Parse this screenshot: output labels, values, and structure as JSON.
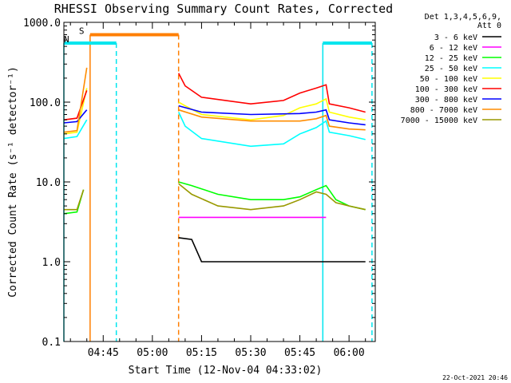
{
  "title": "RHESSI Observing Summary Count Rates, Corrected",
  "footer_date": "22-Oct-2021 20:46",
  "colors": {
    "background": "#ffffff",
    "axis": "#000000",
    "cyan": "#00e5ee",
    "orange": "#ff7f00"
  },
  "chart_data": {
    "type": "line",
    "title": "RHESSI Observing Summary Count Rates, Corrected",
    "xlabel": "Start Time (12-Nov-04 04:33:02)",
    "ylabel": "Corrected Count Rate (s⁻¹ detector⁻¹)",
    "y_scale": "log",
    "ylim": [
      0.1,
      1000.0
    ],
    "xlim": [
      "04:33",
      "06:08"
    ],
    "x_tick_labels": [
      "04:45",
      "05:00",
      "05:15",
      "05:30",
      "05:45",
      "06:00"
    ],
    "y_tick_labels": [
      "0.1",
      "1.0",
      "10.0",
      "100.0",
      "1000.0"
    ],
    "legend_title": [
      "Det 1,3,4,5,6,9,",
      "Att 0"
    ],
    "legend_position": "top-right, outside plot",
    "gaps": [
      [
        "04:41",
        "05:08"
      ]
    ],
    "series": [
      {
        "name": "3 - 6 keV",
        "color": "#000000",
        "x": [
          "05:08",
          "05:12",
          "05:15",
          "05:30",
          "05:45",
          "05:51",
          "05:55",
          "06:00",
          "06:05"
        ],
        "y": [
          2.0,
          1.9,
          1.0,
          1.0,
          1.0,
          1.0,
          1.0,
          1.0,
          1.0
        ]
      },
      {
        "name": "6 - 12 keV",
        "color": "#ff00ff",
        "x": [
          "05:08",
          "05:15",
          "05:30",
          "05:45",
          "05:53"
        ],
        "y": [
          3.6,
          3.6,
          3.6,
          3.6,
          3.6
        ]
      },
      {
        "name": "12 - 25 keV",
        "color": "#00ff00",
        "x": [
          "04:33",
          "04:37",
          "04:39",
          "05:08",
          "05:12",
          "05:20",
          "05:30",
          "05:40",
          "05:45",
          "05:50",
          "05:53",
          "05:56",
          "06:00",
          "06:05"
        ],
        "y": [
          4.0,
          4.2,
          8.0,
          10.0,
          9.0,
          7.0,
          6.0,
          6.0,
          6.5,
          8.0,
          9.0,
          6.0,
          5.0,
          4.5
        ]
      },
      {
        "name": "25 - 50 keV",
        "color": "#00ffff",
        "x": [
          "04:33",
          "04:37",
          "04:40",
          "05:08",
          "05:10",
          "05:15",
          "05:30",
          "05:40",
          "05:45",
          "05:50",
          "05:53",
          "05:54",
          "06:00",
          "06:05"
        ],
        "y": [
          35,
          37,
          60,
          75,
          50,
          35,
          28,
          30,
          40,
          48,
          58,
          42,
          38,
          34
        ]
      },
      {
        "name": "50 - 100 keV",
        "color": "#ffff00",
        "x": [
          "04:33",
          "04:37",
          "04:40",
          "05:08",
          "05:10",
          "05:15",
          "05:30",
          "05:40",
          "05:45",
          "05:50",
          "05:53",
          "05:54",
          "06:00",
          "06:05"
        ],
        "y": [
          40,
          42,
          150,
          100,
          90,
          70,
          60,
          68,
          85,
          95,
          110,
          75,
          65,
          60
        ]
      },
      {
        "name": "100 - 300 keV",
        "color": "#ff0000",
        "x": [
          "04:33",
          "04:37",
          "04:40",
          "05:08",
          "05:10",
          "05:15",
          "05:30",
          "05:40",
          "05:45",
          "05:50",
          "05:53",
          "05:54",
          "06:00",
          "06:05"
        ],
        "y": [
          60,
          63,
          140,
          230,
          160,
          115,
          95,
          105,
          130,
          150,
          165,
          95,
          85,
          75
        ]
      },
      {
        "name": "300 - 800 keV",
        "color": "#0000ff",
        "x": [
          "04:33",
          "04:37",
          "04:40",
          "05:08",
          "05:15",
          "05:30",
          "05:45",
          "05:50",
          "05:53",
          "05:54",
          "06:00",
          "06:05"
        ],
        "y": [
          55,
          57,
          80,
          90,
          75,
          70,
          72,
          75,
          80,
          60,
          55,
          52
        ]
      },
      {
        "name": "800 - 7000 keV",
        "color": "#ff8c00",
        "x": [
          "04:33",
          "04:37",
          "04:40",
          "05:08",
          "05:15",
          "05:30",
          "05:45",
          "05:50",
          "05:53",
          "05:54",
          "06:00",
          "06:05"
        ],
        "y": [
          42,
          44,
          270,
          80,
          65,
          58,
          58,
          62,
          68,
          50,
          46,
          45
        ]
      },
      {
        "name": "7000 - 15000 keV",
        "color": "#999900",
        "x": [
          "04:33",
          "04:37",
          "04:39",
          "05:08",
          "05:12",
          "05:20",
          "05:30",
          "05:40",
          "05:45",
          "05:50",
          "05:53",
          "05:56",
          "06:00",
          "06:05"
        ],
        "y": [
          4.5,
          4.5,
          8.0,
          9.5,
          7.0,
          5.0,
          4.5,
          5.0,
          6.0,
          7.5,
          7.0,
          5.5,
          5.0,
          4.5
        ]
      }
    ],
    "annotations": [
      {
        "label": "S",
        "kind": "SAA",
        "color": "#ff7f00",
        "start": "04:41",
        "end": "05:08",
        "level": 700
      },
      {
        "label": "N",
        "kind": "Night",
        "color": "#00e5ee",
        "start": "04:33",
        "end": "04:49",
        "level": 550
      },
      {
        "label": "",
        "kind": "Night",
        "color": "#00e5ee",
        "start": "05:52",
        "end": "06:07",
        "level": 550
      }
    ]
  }
}
